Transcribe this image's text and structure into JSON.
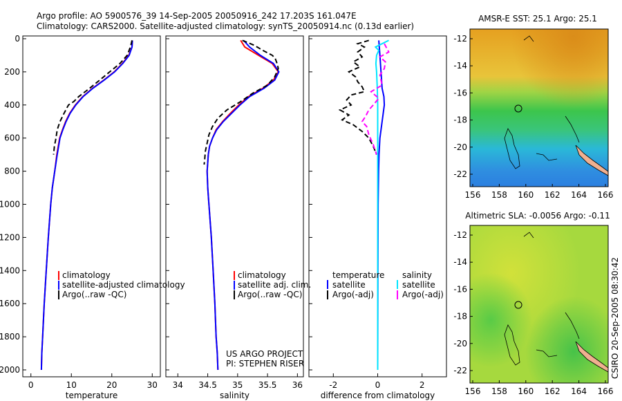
{
  "header": {
    "line1": "Argo profile: AO 5900576_39 14-Sep-2005 20050916_242 17.203S 161.047E",
    "line2": "Climatology: CARS2000. Satellite-adjusted climatology: synTS_20050914.nc (0.13d earlier)"
  },
  "colors": {
    "climatology": "#ff0000",
    "satellite": "#0000ff",
    "argo": "#000000",
    "salinity_satellite": "#00e5ff",
    "salinity_argo": "#ff00ff"
  },
  "chart_data": [
    {
      "id": "temperature",
      "type": "line",
      "xlabel": "temperature",
      "xlim": [
        -2,
        32
      ],
      "xticks": [
        "0",
        "10",
        "20",
        "30"
      ],
      "ylim": [
        2000,
        0
      ],
      "yticks": [
        "0",
        "200",
        "400",
        "600",
        "800",
        "1000",
        "1200",
        "1400",
        "1600",
        "1800",
        "2000"
      ],
      "legend": [
        "climatology",
        "satellite-adjusted climatology",
        "Argo(..raw -QC)"
      ],
      "series": [
        {
          "name": "climatology",
          "style": "solid",
          "points": [
            [
              25.1,
              10
            ],
            [
              25,
              50
            ],
            [
              24.2,
              100
            ],
            [
              22.6,
              150
            ],
            [
              20.6,
              200
            ],
            [
              18,
              250
            ],
            [
              15.2,
              300
            ],
            [
              12.8,
              350
            ],
            [
              11,
              400
            ],
            [
              9.6,
              450
            ],
            [
              8.6,
              500
            ],
            [
              7.8,
              550
            ],
            [
              7.1,
              600
            ],
            [
              6.4,
              700
            ],
            [
              5.9,
              800
            ],
            [
              5.3,
              900
            ],
            [
              4.9,
              1000
            ],
            [
              4.3,
              1200
            ],
            [
              3.8,
              1400
            ],
            [
              3.3,
              1600
            ],
            [
              2.9,
              1800
            ],
            [
              2.7,
              1900
            ],
            [
              2.6,
              2000
            ]
          ]
        },
        {
          "name": "satellite-adjusted climatology",
          "style": "solid",
          "points": [
            [
              25.1,
              10
            ],
            [
              25,
              50
            ],
            [
              24.3,
              100
            ],
            [
              22.7,
              150
            ],
            [
              20.7,
              200
            ],
            [
              18.1,
              250
            ],
            [
              15.3,
              300
            ],
            [
              12.9,
              350
            ],
            [
              11.1,
              400
            ],
            [
              9.7,
              450
            ],
            [
              8.7,
              500
            ],
            [
              7.9,
              550
            ],
            [
              7.2,
              600
            ],
            [
              6.5,
              700
            ],
            [
              5.9,
              800
            ],
            [
              5.3,
              900
            ],
            [
              4.9,
              1000
            ],
            [
              4.3,
              1200
            ],
            [
              3.8,
              1400
            ],
            [
              3.3,
              1600
            ],
            [
              2.9,
              1800
            ],
            [
              2.7,
              1900
            ],
            [
              2.6,
              2000
            ]
          ]
        },
        {
          "name": "Argo(..raw -QC)",
          "style": "dashed",
          "points": [
            [
              25,
              10
            ],
            [
              24.6,
              50
            ],
            [
              23.8,
              100
            ],
            [
              22,
              150
            ],
            [
              19.5,
              200
            ],
            [
              17,
              250
            ],
            [
              14.5,
              300
            ],
            [
              11.8,
              350
            ],
            [
              10.6,
              380
            ],
            [
              9.3,
              400
            ],
            [
              8.2,
              450
            ],
            [
              7.2,
              500
            ],
            [
              6.5,
              550
            ],
            [
              6.2,
              600
            ],
            [
              5.8,
              650
            ],
            [
              5.6,
              700
            ]
          ]
        }
      ]
    },
    {
      "id": "salinity",
      "type": "line",
      "xlabel": "salinity",
      "xlim": [
        33.8,
        36.1
      ],
      "xticks": [
        "34",
        "34.5",
        "35",
        "35.5",
        "36"
      ],
      "ylim": [
        2000,
        0
      ],
      "legend": [
        "climatology",
        "satellite adj. clim.",
        "Argo(..raw -QC)"
      ],
      "annotation": [
        "US ARGO PROJECT",
        "PI: STEPHEN RISER"
      ],
      "series": [
        {
          "name": "climatology",
          "style": "solid",
          "points": [
            [
              35.05,
              10
            ],
            [
              35.12,
              50
            ],
            [
              35.35,
              100
            ],
            [
              35.58,
              150
            ],
            [
              35.68,
              200
            ],
            [
              35.6,
              250
            ],
            [
              35.42,
              300
            ],
            [
              35.18,
              350
            ],
            [
              35.02,
              400
            ],
            [
              34.88,
              450
            ],
            [
              34.75,
              500
            ],
            [
              34.64,
              550
            ],
            [
              34.58,
              600
            ],
            [
              34.53,
              650
            ],
            [
              34.51,
              700
            ],
            [
              34.49,
              800
            ],
            [
              34.5,
              900
            ],
            [
              34.52,
              1000
            ],
            [
              34.56,
              1200
            ],
            [
              34.59,
              1400
            ],
            [
              34.62,
              1600
            ],
            [
              34.64,
              1800
            ],
            [
              34.66,
              1900
            ],
            [
              34.67,
              2000
            ]
          ]
        },
        {
          "name": "satellite adj. clim.",
          "style": "solid",
          "points": [
            [
              35.1,
              10
            ],
            [
              35.2,
              50
            ],
            [
              35.38,
              100
            ],
            [
              35.6,
              150
            ],
            [
              35.69,
              200
            ],
            [
              35.62,
              250
            ],
            [
              35.44,
              300
            ],
            [
              35.2,
              350
            ],
            [
              35.04,
              400
            ],
            [
              34.9,
              450
            ],
            [
              34.76,
              500
            ],
            [
              34.65,
              550
            ],
            [
              34.58,
              600
            ],
            [
              34.53,
              650
            ],
            [
              34.51,
              700
            ],
            [
              34.49,
              800
            ],
            [
              34.5,
              900
            ],
            [
              34.52,
              1000
            ],
            [
              34.56,
              1200
            ],
            [
              34.59,
              1400
            ],
            [
              34.62,
              1600
            ],
            [
              34.64,
              1800
            ],
            [
              34.66,
              1900
            ],
            [
              34.67,
              2000
            ]
          ]
        },
        {
          "name": "Argo(..raw -QC)",
          "style": "dashed",
          "points": [
            [
              35.08,
              10
            ],
            [
              35.28,
              40
            ],
            [
              35.42,
              70
            ],
            [
              35.58,
              100
            ],
            [
              35.63,
              120
            ],
            [
              35.66,
              150
            ],
            [
              35.68,
              180
            ],
            [
              35.62,
              230
            ],
            [
              35.5,
              280
            ],
            [
              35.25,
              330
            ],
            [
              35.05,
              380
            ],
            [
              34.82,
              430
            ],
            [
              34.67,
              480
            ],
            [
              34.58,
              530
            ],
            [
              34.52,
              580
            ],
            [
              34.49,
              630
            ],
            [
              34.46,
              680
            ],
            [
              34.45,
              730
            ],
            [
              34.44,
              760
            ]
          ]
        }
      ]
    },
    {
      "id": "difference",
      "type": "line",
      "xlabel": "difference from climatology",
      "xlim": [
        -3.1,
        3.1
      ],
      "xticks": [
        "-2",
        "0",
        "2"
      ],
      "ylim": [
        2000,
        0
      ],
      "legend": {
        "col1_title": "temperature",
        "col1": [
          "satellite",
          "Argo(-adj)"
        ],
        "col2_title": "salinity",
        "col2": [
          "satellite",
          "Argo(-adj)"
        ]
      },
      "series": [
        {
          "name": "temperature satellite",
          "style": "solid",
          "points": [
            [
              0.05,
              10
            ],
            [
              0.1,
              100
            ],
            [
              0.15,
              200
            ],
            [
              0.2,
              300
            ],
            [
              0.28,
              350
            ],
            [
              0.3,
              400
            ],
            [
              0.25,
              450
            ],
            [
              0.2,
              500
            ],
            [
              0.15,
              550
            ],
            [
              0.1,
              600
            ],
            [
              0.06,
              700
            ],
            [
              0.04,
              800
            ],
            [
              0.02,
              1000
            ],
            [
              0.01,
              1400
            ],
            [
              0,
              2000
            ]
          ]
        },
        {
          "name": "temperature Argo(-adj)",
          "style": "dashed",
          "points": [
            [
              -0.4,
              10
            ],
            [
              -0.9,
              30
            ],
            [
              -0.6,
              50
            ],
            [
              -0.9,
              80
            ],
            [
              -0.7,
              110
            ],
            [
              -1.1,
              140
            ],
            [
              -0.8,
              170
            ],
            [
              -1.3,
              200
            ],
            [
              -1,
              230
            ],
            [
              -0.9,
              260
            ],
            [
              -0.7,
              290
            ],
            [
              -0.6,
              320
            ],
            [
              -1.2,
              340
            ],
            [
              -1.4,
              370
            ],
            [
              -1.2,
              400
            ],
            [
              -1.7,
              430
            ],
            [
              -1.3,
              460
            ],
            [
              -1.6,
              490
            ],
            [
              -1.1,
              520
            ],
            [
              -0.7,
              560
            ],
            [
              -0.4,
              600
            ],
            [
              -0.2,
              650
            ],
            [
              -0.05,
              700
            ]
          ]
        },
        {
          "name": "salinity satellite",
          "style": "solid",
          "points": [
            [
              0.5,
              10
            ],
            [
              0.2,
              30
            ],
            [
              -0.1,
              50
            ],
            [
              0.05,
              70
            ],
            [
              -0.05,
              100
            ],
            [
              -0.08,
              150
            ],
            [
              -0.05,
              200
            ],
            [
              -0.02,
              300
            ],
            [
              0,
              400
            ],
            [
              0,
              600
            ],
            [
              0,
              1000
            ],
            [
              0,
              2000
            ]
          ]
        },
        {
          "name": "salinity Argo(-adj)",
          "style": "dashed",
          "points": [
            [
              0.3,
              30
            ],
            [
              0.5,
              80
            ],
            [
              0.1,
              110
            ],
            [
              0.35,
              140
            ],
            [
              0.3,
              180
            ],
            [
              0.1,
              220
            ],
            [
              0.2,
              280
            ],
            [
              -0.3,
              320
            ],
            [
              0.05,
              360
            ],
            [
              -0.2,
              400
            ],
            [
              -0.4,
              430
            ],
            [
              -0.55,
              470
            ],
            [
              -0.7,
              500
            ],
            [
              -0.5,
              530
            ],
            [
              -0.4,
              580
            ],
            [
              -0.2,
              640
            ],
            [
              -0.05,
              700
            ]
          ]
        }
      ]
    }
  ],
  "maps": [
    {
      "id": "sst",
      "title": "AMSR-E SST: 25.1 Argo: 25.1",
      "xticks": [
        "156",
        "158",
        "160",
        "162",
        "164",
        "166"
      ],
      "yticks": [
        "-12",
        "-14",
        "-16",
        "-18",
        "-20",
        "-22"
      ]
    },
    {
      "id": "sla",
      "title": "Altimetric SLA: -0.0056 Argo: -0.11",
      "xticks": [
        "156",
        "158",
        "160",
        "162",
        "164",
        "166"
      ],
      "yticks": [
        "-12",
        "-14",
        "-16",
        "-18",
        "-20",
        "-22"
      ]
    }
  ],
  "footer": {
    "stamp": "CSIRO 20-Sep-2005 08:30:42"
  }
}
